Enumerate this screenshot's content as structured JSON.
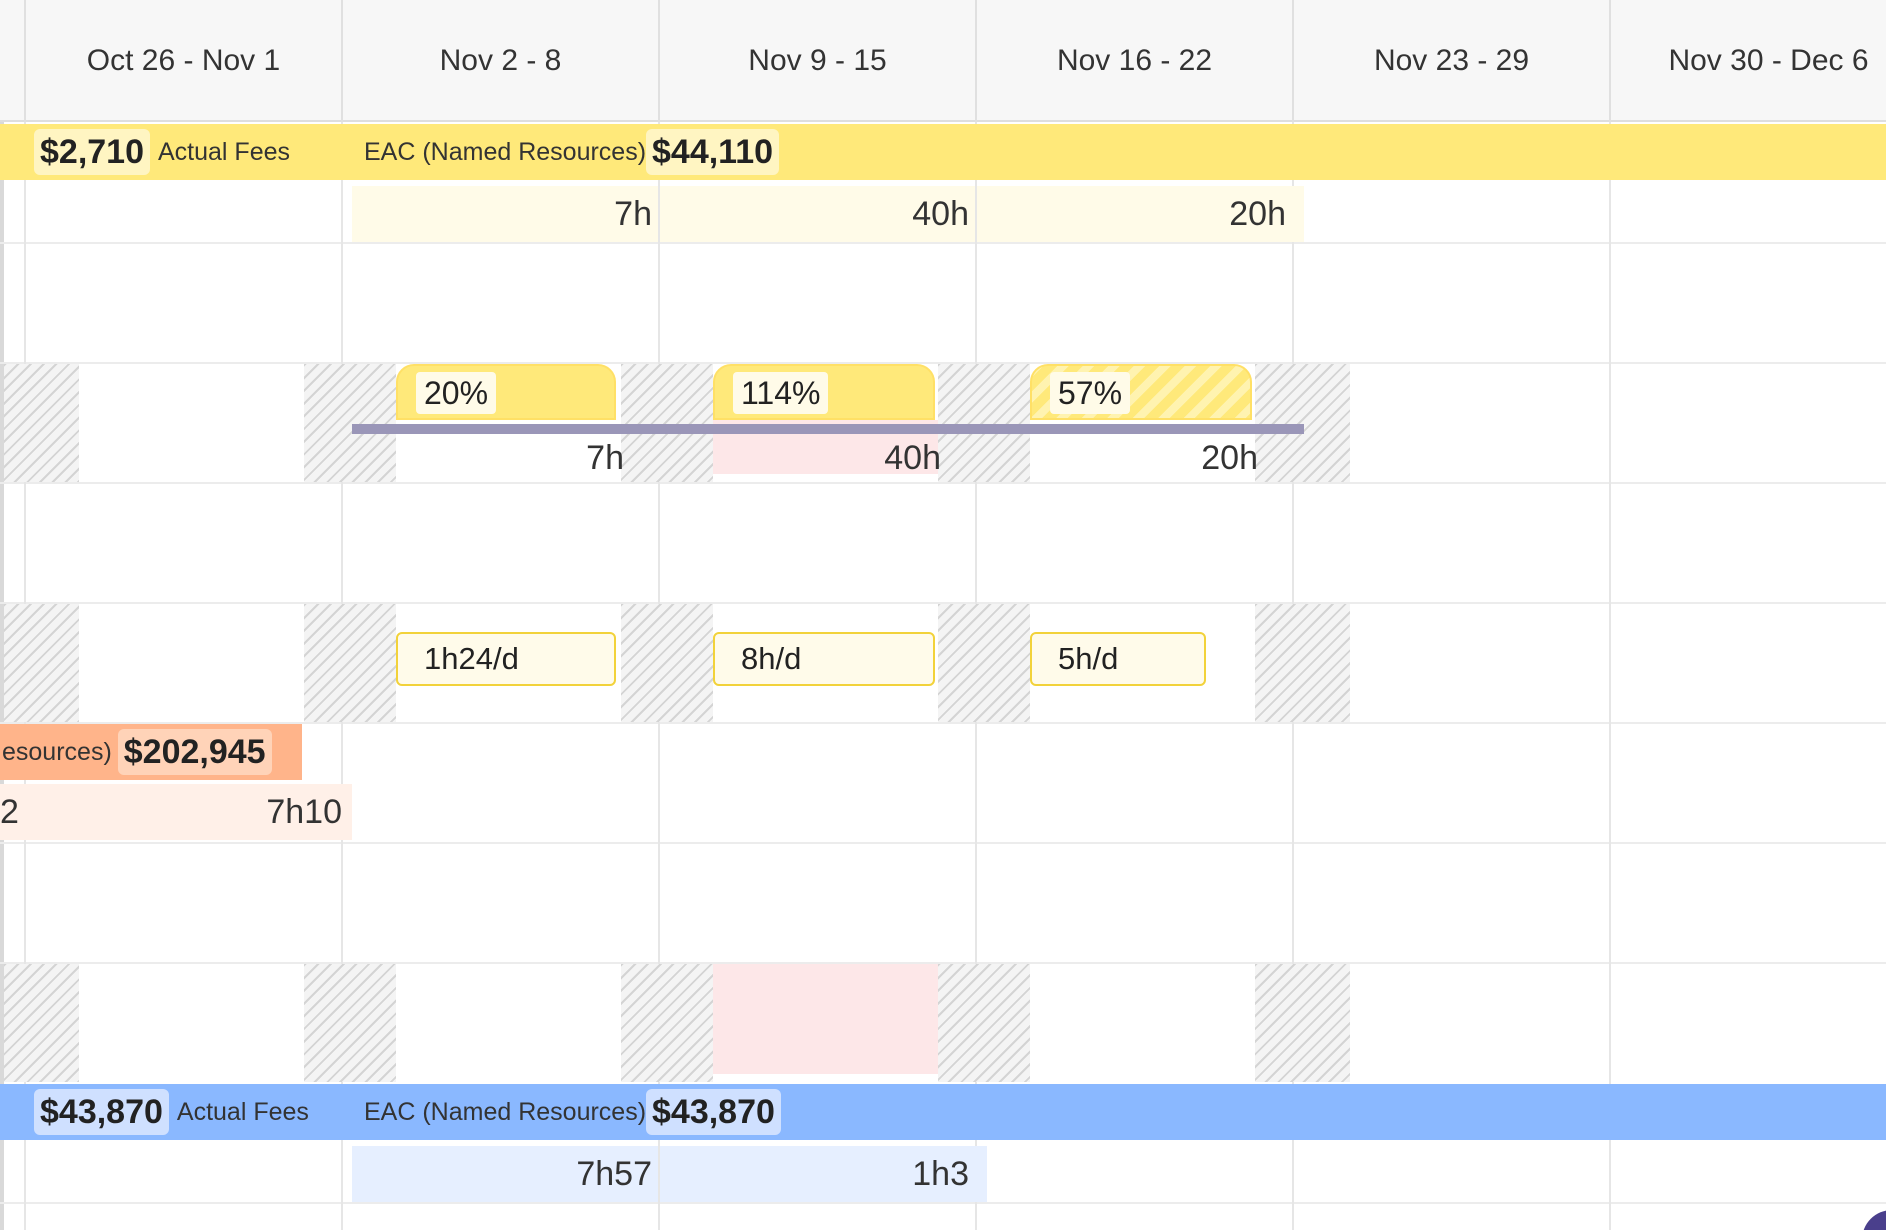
{
  "weeks": [
    "Oct 26 - Nov 1",
    "Nov 2 - 8",
    "Nov 9 - 15",
    "Nov 16 - 22",
    "Nov 23 - 29",
    "Nov 30 - Dec 6"
  ],
  "project_yellow": {
    "actual_fees_value": "$2,710",
    "actual_fees_label": "Actual Fees",
    "eac_label": "EAC (Named Resources)",
    "eac_value": "$44,110",
    "hours": [
      "7h",
      "40h",
      "20h"
    ],
    "color": "#ffe97a"
  },
  "utilization": {
    "items": [
      {
        "percent": "20%",
        "hours": "7h",
        "percent_value": 20
      },
      {
        "percent": "114%",
        "hours": "40h",
        "percent_value": 114
      },
      {
        "percent": "57%",
        "hours": "20h",
        "percent_value": 57
      }
    ],
    "baseline_color": "#9a96b8"
  },
  "rates": [
    "1h24/d",
    "8h/d",
    "5h/d"
  ],
  "project_orange": {
    "eac_label_partial": "esources)",
    "eac_value": "$202,945",
    "hours_partial": "2",
    "hours": "7h10",
    "color": "#ffb48a"
  },
  "project_blue": {
    "actual_fees_value": "$43,870",
    "actual_fees_label": "Actual Fees",
    "eac_label": "EAC (Named Resources)",
    "eac_value": "$43,870",
    "hours": [
      "7h57",
      "1h3"
    ],
    "color": "#8ab8ff"
  }
}
